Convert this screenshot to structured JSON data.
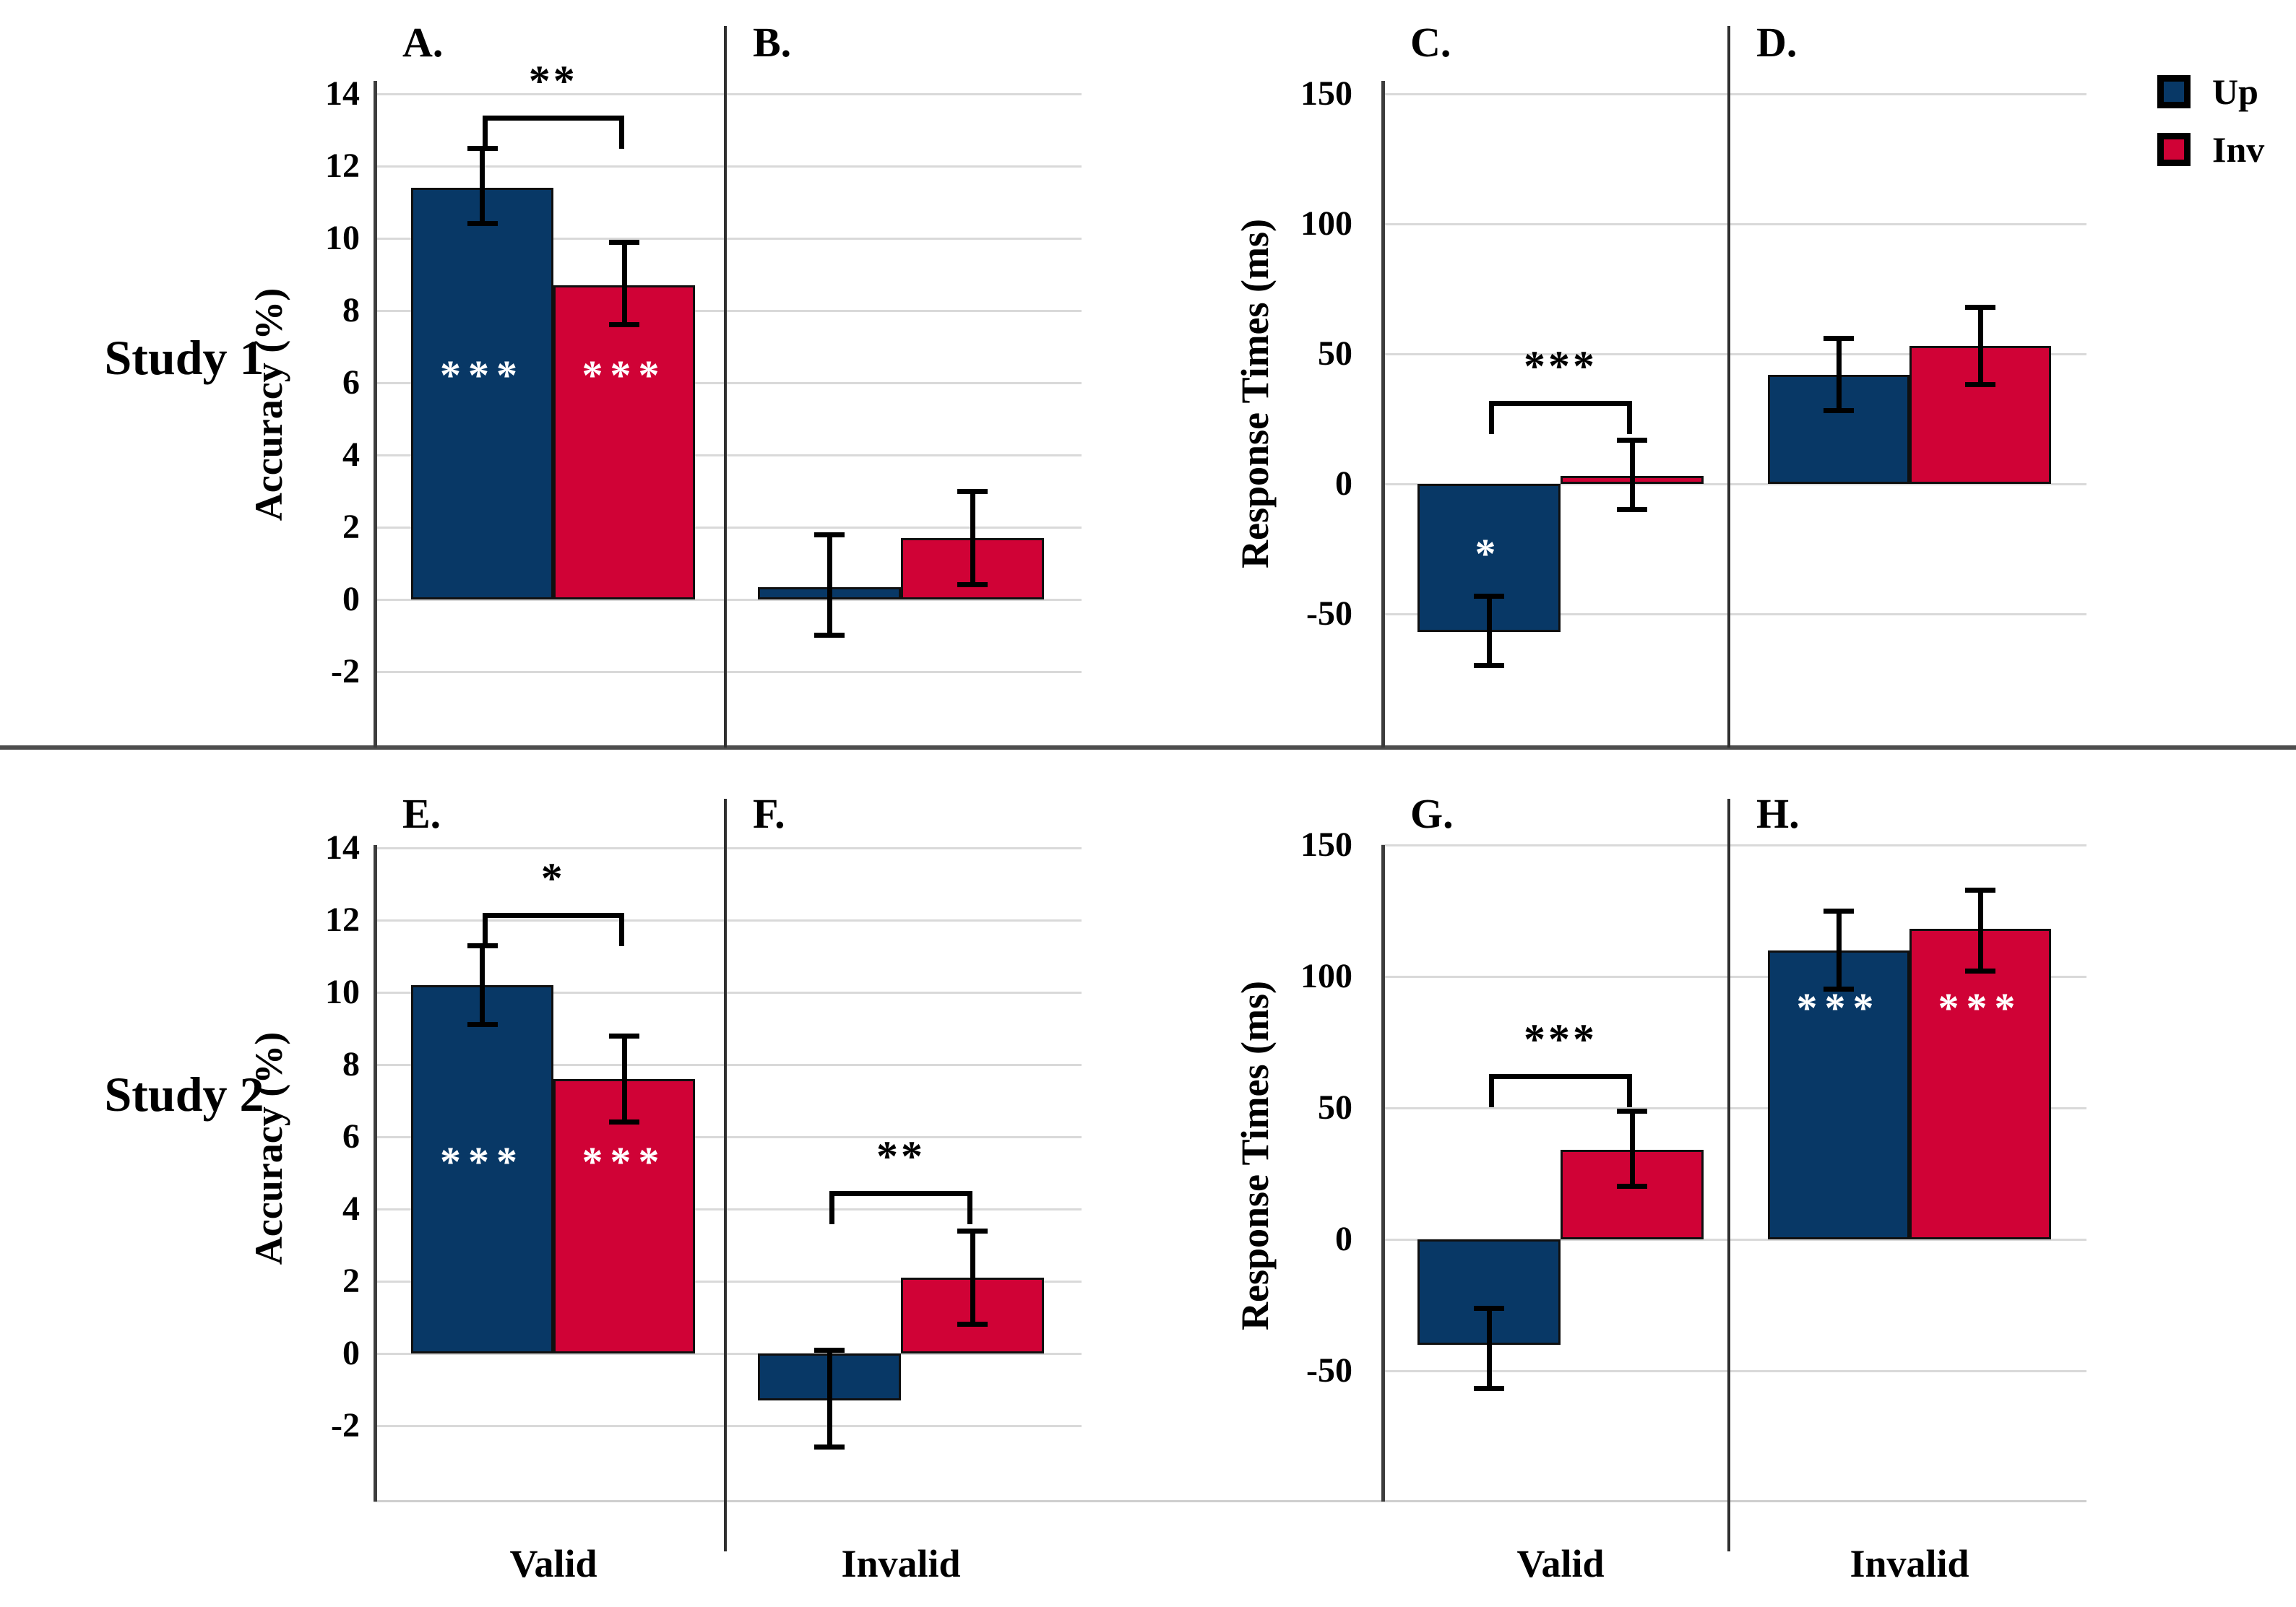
{
  "figure": {
    "row_labels": [
      "Study 1",
      "Study 2"
    ],
    "condition_labels": [
      "Valid",
      "Invalid"
    ]
  },
  "legend": {
    "position": "top-right",
    "items": [
      {
        "label": "Up",
        "color": "#083866"
      },
      {
        "label": "Inv",
        "color": "#D00236"
      }
    ]
  },
  "colors": {
    "up": "#083866",
    "inv": "#D00236",
    "gridline": "#D9D9D9",
    "axis": "#3D3D3D",
    "separator": "#4D4D4D",
    "error_bar": "#000000",
    "bar_border": "#101010",
    "in_bar_annotation": "#FFFFFF",
    "text": "#000000"
  },
  "chart_data": {
    "type": "bar",
    "series_names": [
      "Up",
      "Inv"
    ],
    "legend_position": "top-right",
    "grid": true,
    "groups": [
      {
        "id": "accuracy-study1",
        "row_label": "Study 1",
        "ylabel": "Accuracy (%)",
        "yticks": [
          14,
          12,
          10,
          8,
          6,
          4,
          2,
          0,
          -2
        ],
        "ylim": [
          -4.2,
          14.4
        ],
        "show_x_labels": false,
        "panels": [
          {
            "letter": "A.",
            "condition": "Valid",
            "bars": [
              {
                "series": "Up",
                "value": 11.4,
                "err_lo": 10.4,
                "err_hi": 12.5,
                "star": "***",
                "star_at": 6.2
              },
              {
                "series": "Inv",
                "value": 8.7,
                "err_lo": 7.6,
                "err_hi": 9.9,
                "star": "***",
                "star_at": 6.2
              }
            ],
            "sig": {
              "label": "**",
              "bracket_at": 13.4
            }
          },
          {
            "letter": "B.",
            "condition": "Invalid",
            "bars": [
              {
                "series": "Up",
                "value": 0.35,
                "err_lo": -1.0,
                "err_hi": 1.8
              },
              {
                "series": "Inv",
                "value": 1.7,
                "err_lo": 0.4,
                "err_hi": 3.0
              }
            ],
            "sig": null
          }
        ]
      },
      {
        "id": "rt-study1",
        "row_label": "Study 1",
        "ylabel": "Response Times (ms)",
        "yticks": [
          150,
          100,
          50,
          0,
          -50
        ],
        "ylim": [
          -101,
          155
        ],
        "show_x_labels": false,
        "panels": [
          {
            "letter": "C.",
            "condition": "Valid",
            "bars": [
              {
                "series": "Up",
                "value": -57,
                "err_lo": -70,
                "err_hi": -43,
                "star": "*",
                "star_at": -27
              },
              {
                "series": "Inv",
                "value": 3,
                "err_lo": -10,
                "err_hi": 17
              }
            ],
            "sig": {
              "label": "***",
              "bracket_at": 32
            }
          },
          {
            "letter": "D.",
            "condition": "Invalid",
            "bars": [
              {
                "series": "Up",
                "value": 42,
                "err_lo": 28,
                "err_hi": 56
              },
              {
                "series": "Inv",
                "value": 53,
                "err_lo": 38,
                "err_hi": 68
              }
            ],
            "sig": null
          }
        ]
      },
      {
        "id": "accuracy-study2",
        "row_label": "Study 2",
        "ylabel": "Accuracy (%)",
        "yticks": [
          14,
          12,
          10,
          8,
          6,
          4,
          2,
          0,
          -2
        ],
        "ylim": [
          -4.1,
          14.1
        ],
        "show_x_labels": true,
        "panels": [
          {
            "letter": "E.",
            "condition": "Valid",
            "bars": [
              {
                "series": "Up",
                "value": 10.2,
                "err_lo": 9.1,
                "err_hi": 11.3,
                "star": "***",
                "star_at": 5.3
              },
              {
                "series": "Inv",
                "value": 7.6,
                "err_lo": 6.4,
                "err_hi": 8.8,
                "star": "***",
                "star_at": 5.3
              }
            ],
            "sig": {
              "label": "*",
              "bracket_at": 12.2
            }
          },
          {
            "letter": "F.",
            "condition": "Invalid",
            "bars": [
              {
                "series": "Up",
                "value": -1.3,
                "err_lo": -2.6,
                "err_hi": 0.1
              },
              {
                "series": "Inv",
                "value": 2.1,
                "err_lo": 0.8,
                "err_hi": 3.4
              }
            ],
            "sig": {
              "label": "**",
              "bracket_at": 4.5
            }
          }
        ]
      },
      {
        "id": "rt-study2",
        "row_label": "Study 2",
        "ylabel": "Response Times (ms)",
        "yticks": [
          150,
          100,
          50,
          0,
          -50
        ],
        "ylim": [
          -100,
          150
        ],
        "show_x_labels": true,
        "panels": [
          {
            "letter": "G.",
            "condition": "Valid",
            "bars": [
              {
                "series": "Up",
                "value": -40,
                "err_lo": -57,
                "err_hi": -26
              },
              {
                "series": "Inv",
                "value": 34,
                "err_lo": 20,
                "err_hi": 49
              }
            ],
            "sig": {
              "label": "***",
              "bracket_at": 63
            }
          },
          {
            "letter": "H.",
            "condition": "Invalid",
            "bars": [
              {
                "series": "Up",
                "value": 110,
                "err_lo": 95,
                "err_hi": 125,
                "star": "***",
                "star_at": 88
              },
              {
                "series": "Inv",
                "value": 118,
                "err_lo": 102,
                "err_hi": 133,
                "star": "***",
                "star_at": 88
              }
            ],
            "sig": null
          }
        ]
      }
    ]
  }
}
